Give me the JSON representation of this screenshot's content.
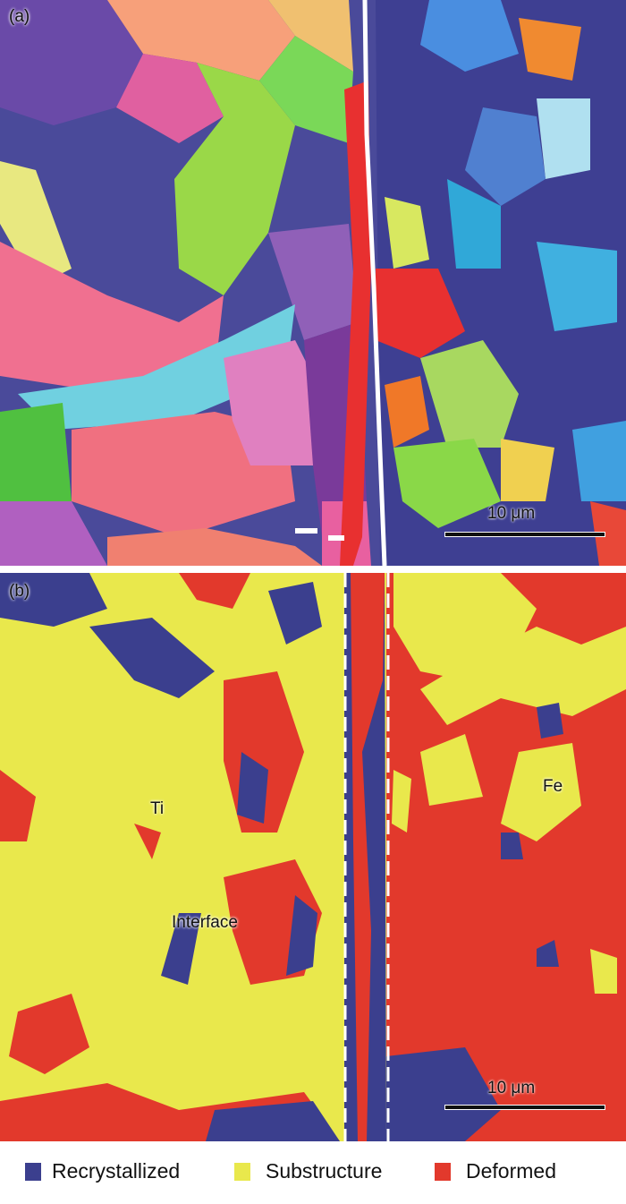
{
  "panel_a": {
    "label": "(a)",
    "scale_bar": "10 μm"
  },
  "panel_b": {
    "label": "(b)",
    "scale_bar": "10 μm",
    "annotations": {
      "ti": "Ti",
      "fe": "Fe",
      "interface": "Interface"
    }
  },
  "legend": [
    {
      "label": "Recrystallized",
      "color": "#3b3f8e"
    },
    {
      "label": "Substructure",
      "color": "#e9e84c"
    },
    {
      "label": "Deformed",
      "color": "#e2392c"
    }
  ]
}
